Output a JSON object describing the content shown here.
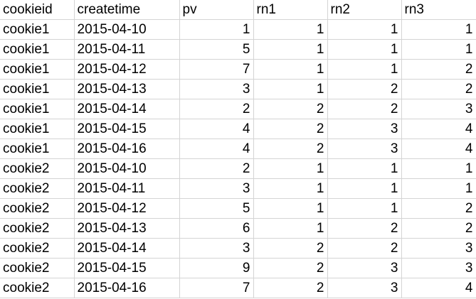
{
  "columns": [
    "cookieid",
    "createtime",
    "pv",
    "rn1",
    "rn2",
    "rn3"
  ],
  "rows": [
    [
      "cookie1",
      "2015-04-10",
      "1",
      "1",
      "1",
      "1"
    ],
    [
      "cookie1",
      "2015-04-11",
      "5",
      "1",
      "1",
      "1"
    ],
    [
      "cookie1",
      "2015-04-12",
      "7",
      "1",
      "1",
      "2"
    ],
    [
      "cookie1",
      "2015-04-13",
      "3",
      "1",
      "2",
      "2"
    ],
    [
      "cookie1",
      "2015-04-14",
      "2",
      "2",
      "2",
      "3"
    ],
    [
      "cookie1",
      "2015-04-15",
      "4",
      "2",
      "3",
      "4"
    ],
    [
      "cookie1",
      "2015-04-16",
      "4",
      "2",
      "3",
      "4"
    ],
    [
      "cookie2",
      "2015-04-10",
      "2",
      "1",
      "1",
      "1"
    ],
    [
      "cookie2",
      "2015-04-11",
      "3",
      "1",
      "1",
      "1"
    ],
    [
      "cookie2",
      "2015-04-12",
      "5",
      "1",
      "1",
      "2"
    ],
    [
      "cookie2",
      "2015-04-13",
      "6",
      "1",
      "2",
      "2"
    ],
    [
      "cookie2",
      "2015-04-14",
      "3",
      "2",
      "2",
      "3"
    ],
    [
      "cookie2",
      "2015-04-15",
      "9",
      "2",
      "3",
      "3"
    ],
    [
      "cookie2",
      "2015-04-16",
      "7",
      "2",
      "3",
      "4"
    ]
  ]
}
